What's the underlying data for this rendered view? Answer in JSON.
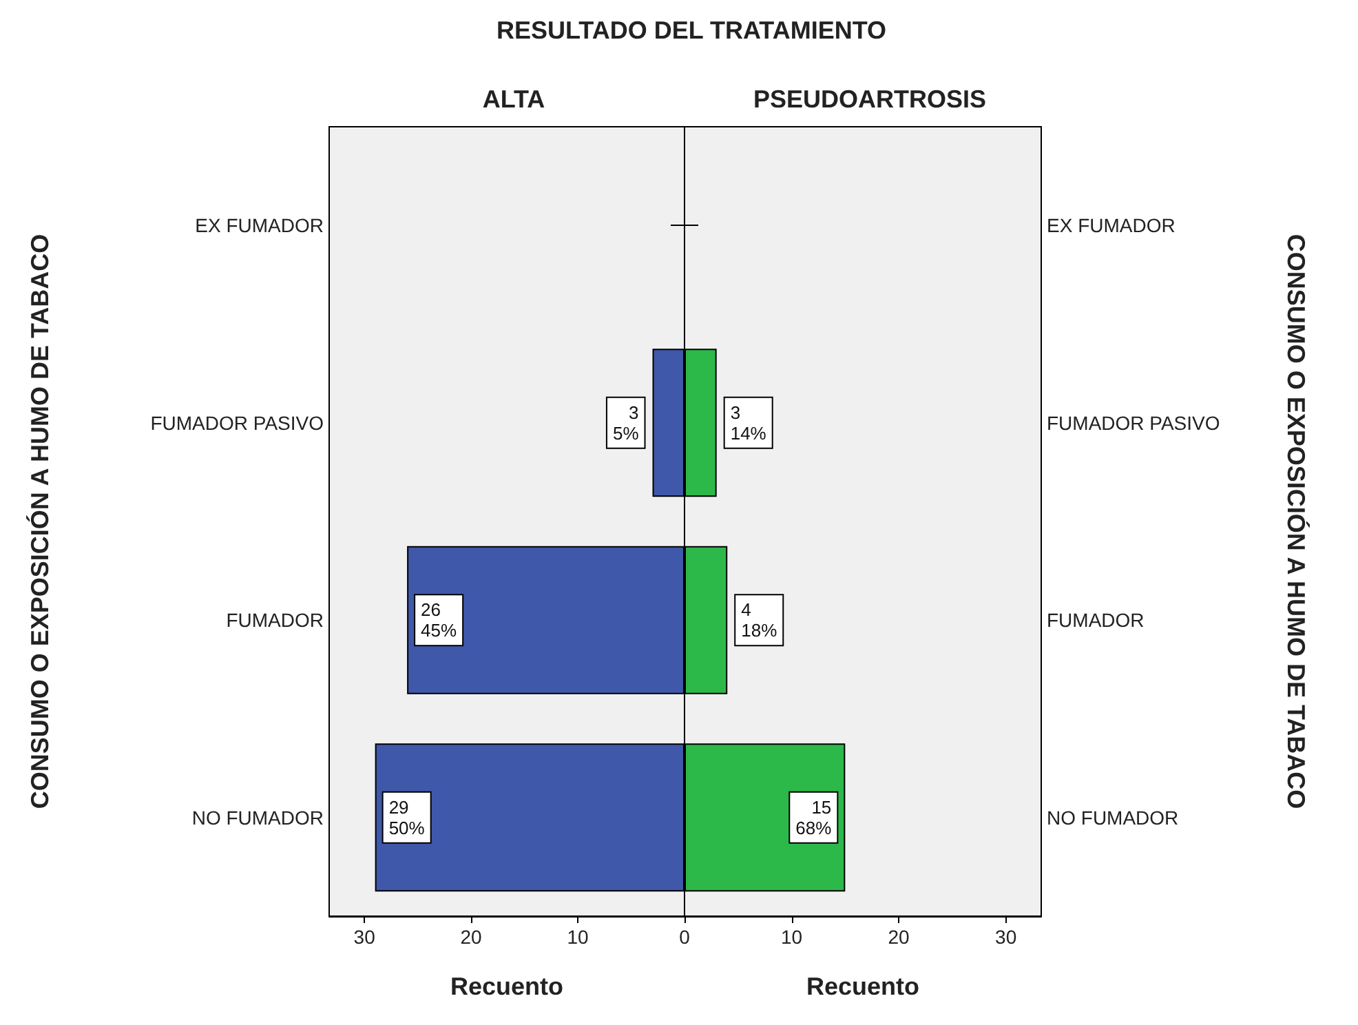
{
  "chart_data": [
    {
      "type": "bar",
      "orientation": "horizontal",
      "title": "RESULTADO DEL TRATAMIENTO",
      "subtitle": "ALTA",
      "xlabel": "Recuento",
      "ylabel": "CONSUMO O EXPOSICIÓN A HUMO DE TABACO",
      "categories": [
        "EX FUMADOR",
        "FUMADOR PASIVO",
        "FUMADOR",
        "NO FUMADOR"
      ],
      "values": [
        0,
        3,
        26,
        29
      ],
      "value_labels": [
        null,
        "3\n5%",
        "26\n45%",
        "29\n50%"
      ],
      "color": "#3f58aa",
      "xlim": [
        33.3,
        0
      ],
      "xticks": [
        30,
        20,
        10,
        0
      ]
    },
    {
      "type": "bar",
      "orientation": "horizontal",
      "subtitle": "PSEUDOARTROSIS",
      "xlabel": "Recuento",
      "ylabel": "CONSUMO O EXPOSICIÓN A HUMO DE TABACO",
      "categories": [
        "EX FUMADOR",
        "FUMADOR PASIVO",
        "FUMADOR",
        "NO FUMADOR"
      ],
      "values": [
        0,
        3,
        4,
        15
      ],
      "value_labels": [
        null,
        "3\n14%",
        "4\n18%",
        "15\n68%"
      ],
      "color": "#2db84a",
      "xlim": [
        0,
        33.3
      ],
      "xticks": [
        {
          "value": 0,
          "label": null
        },
        10,
        20,
        30
      ]
    }
  ]
}
